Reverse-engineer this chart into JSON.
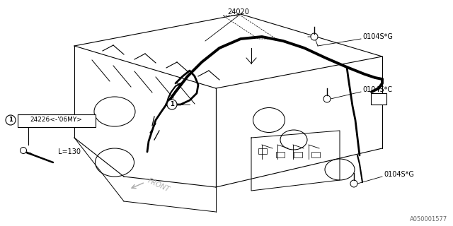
{
  "bg": "#ffffff",
  "lc": "#000000",
  "gc": "#aaaaaa",
  "fig_w": 6.4,
  "fig_h": 3.2,
  "dpi": 100,
  "watermark": "A050001577",
  "p24020": "24020",
  "p0104SG1": "0104S*G",
  "p0104SC": "0104S*C",
  "p0104SG2": "0104S*G",
  "p24226": "24226（<−’06MY）",
  "pL130": "L=130",
  "pFRONT": "FRONT",
  "note24226": "24226(<-'06MY)"
}
